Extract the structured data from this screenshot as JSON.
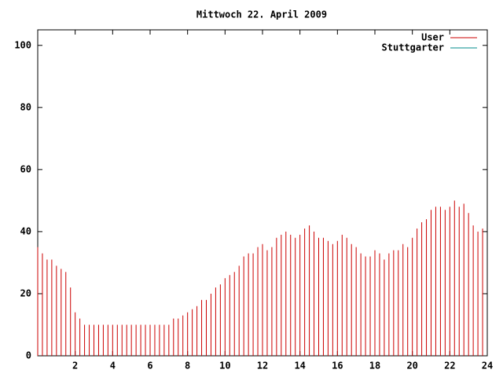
{
  "chart_data": {
    "type": "impulses",
    "title": "Mittwoch 22. April 2009",
    "x": [
      0,
      0.25,
      0.5,
      0.75,
      1,
      1.25,
      1.5,
      1.75,
      2,
      2.25,
      2.5,
      2.75,
      3,
      3.25,
      3.5,
      3.75,
      4,
      4.25,
      4.5,
      4.75,
      5,
      5.25,
      5.5,
      5.75,
      6,
      6.25,
      6.5,
      6.75,
      7,
      7.25,
      7.5,
      7.75,
      8,
      8.25,
      8.5,
      8.75,
      9,
      9.25,
      9.5,
      9.75,
      10,
      10.25,
      10.5,
      10.75,
      11,
      11.25,
      11.5,
      11.75,
      12,
      12.25,
      12.5,
      12.75,
      13,
      13.25,
      13.5,
      13.75,
      14,
      14.25,
      14.5,
      14.75,
      15,
      15.25,
      15.5,
      15.75,
      16,
      16.25,
      16.5,
      16.75,
      17,
      17.25,
      17.5,
      17.75,
      18,
      18.25,
      18.5,
      18.75,
      19,
      19.25,
      19.5,
      19.75,
      20,
      20.25,
      20.5,
      20.75,
      21,
      21.25,
      21.5,
      21.75,
      22,
      22.25,
      22.5,
      22.75,
      23,
      23.25,
      23.5,
      23.75
    ],
    "series": [
      {
        "name": "User",
        "color": "#cc0000",
        "values": [
          35,
          33,
          31,
          31,
          29,
          28,
          27,
          22,
          14,
          12,
          10,
          10,
          10,
          10,
          10,
          10,
          10,
          10,
          10,
          10,
          10,
          10,
          10,
          10,
          10,
          10,
          10,
          10,
          10,
          12,
          12,
          13,
          14,
          15,
          16,
          18,
          18,
          20,
          22,
          23,
          25,
          26,
          27,
          29,
          32,
          33,
          33,
          35,
          36,
          34,
          35,
          38,
          39,
          40,
          39,
          38,
          39,
          41,
          42,
          40,
          38,
          38,
          37,
          36,
          37,
          39,
          38,
          36,
          35,
          33,
          32,
          32,
          34,
          33,
          31,
          33,
          34,
          34,
          36,
          35,
          38,
          41,
          43,
          44,
          47,
          48,
          48,
          47,
          48,
          50,
          48,
          49,
          46,
          42,
          40,
          41
        ]
      },
      {
        "name": "Stuttgarter",
        "color": "#008b8b",
        "values": [
          null,
          null,
          null,
          null,
          null,
          null,
          null,
          null,
          null,
          null,
          null,
          null,
          null,
          null,
          null,
          null,
          null,
          null,
          null,
          null,
          null,
          null,
          null,
          null,
          null,
          null,
          null,
          null,
          null,
          null,
          null,
          null,
          null,
          null,
          null,
          null,
          null,
          null,
          null,
          null,
          null,
          null,
          null,
          null,
          null,
          null,
          null,
          null,
          null,
          null,
          null,
          null,
          null,
          null,
          null,
          null,
          null,
          null,
          null,
          null,
          null,
          null,
          null,
          null,
          null,
          null,
          null,
          null,
          null,
          null,
          null,
          null,
          null,
          null,
          null,
          null,
          null,
          null,
          null,
          null,
          null,
          null,
          null,
          null,
          null,
          null,
          null,
          null,
          null,
          null,
          null,
          null,
          null,
          null,
          null,
          null
        ]
      }
    ],
    "xlim": [
      0,
      24
    ],
    "xticks": [
      2,
      4,
      6,
      8,
      10,
      12,
      14,
      16,
      18,
      20,
      22,
      24
    ],
    "ylim": [
      0,
      105
    ],
    "yticks": [
      0,
      20,
      40,
      60,
      80,
      100
    ],
    "legend": "top-right"
  }
}
